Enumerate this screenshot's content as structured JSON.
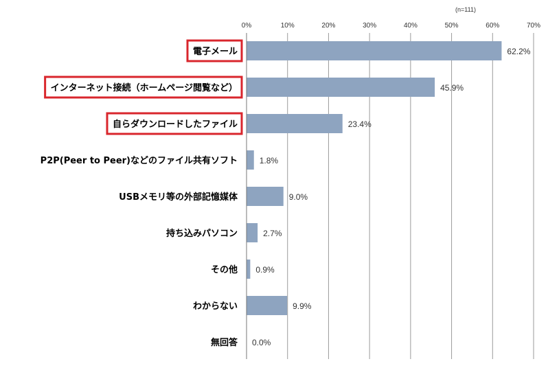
{
  "chart_data": {
    "type": "bar",
    "orientation": "horizontal",
    "note": "(n=111)",
    "categories": [
      "電子メール",
      "インターネット接続（ホームページ閲覧など）",
      "自らダウンロードしたファイル",
      "P2P(Peer to Peer)などのファイル共有ソフト",
      "USBメモリ等の外部記憶媒体",
      "持ち込みパソコン",
      "その他",
      "わからない",
      "無回答"
    ],
    "values": [
      62.2,
      45.9,
      23.4,
      1.8,
      9.0,
      2.7,
      0.9,
      9.9,
      0.0
    ],
    "value_labels": [
      "62.2%",
      "45.9%",
      "23.4%",
      "1.8%",
      "9.0%",
      "2.7%",
      "0.9%",
      "9.9%",
      "0.0%"
    ],
    "highlighted": [
      true,
      true,
      true,
      false,
      false,
      false,
      false,
      false,
      false
    ],
    "xticks": [
      "0%",
      "10%",
      "20%",
      "30%",
      "40%",
      "50%",
      "60%",
      "70%"
    ],
    "xlim": [
      0,
      70
    ],
    "grid": true,
    "bar_color": "#8EA4C0",
    "highlight_color": "#D9262C"
  }
}
